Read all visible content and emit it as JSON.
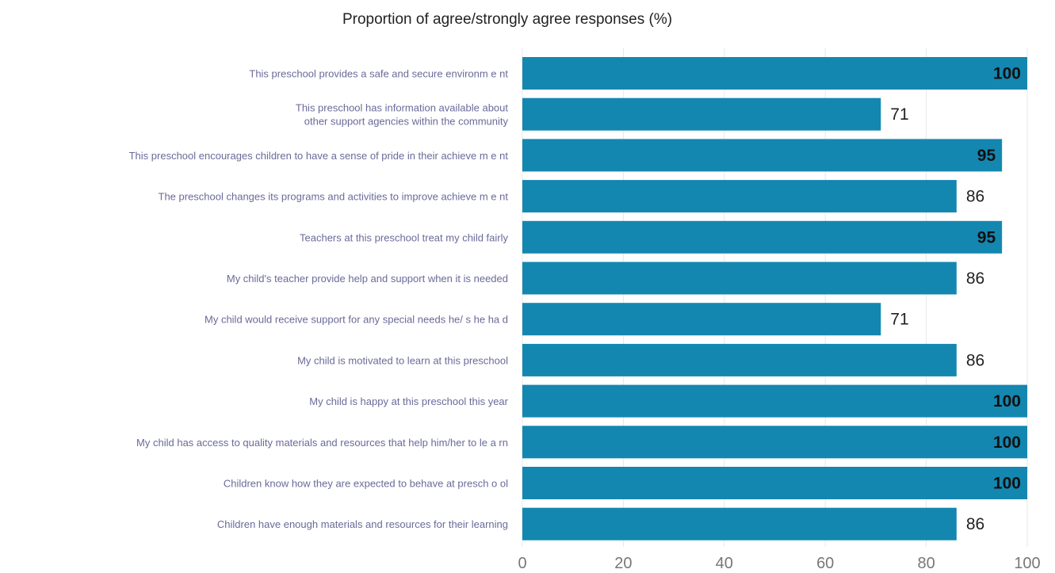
{
  "chart_data": {
    "type": "bar",
    "orientation": "horizontal",
    "title": "Proportion of agree/strongly agree responses (%)",
    "xlabel": "",
    "ylabel": "",
    "xlim": [
      0,
      100
    ],
    "xticks": [
      0,
      20,
      40,
      60,
      80,
      100
    ],
    "grid": true,
    "legend": "none",
    "bar_color": "#1487b0",
    "categories": [
      [
        "This preschool provides a safe and secure environm e nt"
      ],
      [
        "This preschool has information available about",
        "other support agencies within the community"
      ],
      [
        "This preschool encourages children to have a sense of pride in their achieve m e nt"
      ],
      [
        "The preschool changes its programs and activities to improve achieve m e nt"
      ],
      [
        "Teachers at this preschool treat my child fairly"
      ],
      [
        "My child's teacher provide help and support when it is needed"
      ],
      [
        "My child would receive support for any special needs he/ s he ha d"
      ],
      [
        "My child is motivated to learn at this preschool"
      ],
      [
        "My child is happy at this preschool this year"
      ],
      [
        "My child has access to quality materials and resources that help him/her to le a rn"
      ],
      [
        "Children know how they are expected to behave at presch o ol"
      ],
      [
        "Children have enough materials and resources for their learning"
      ]
    ],
    "values": [
      100,
      71,
      95,
      86,
      95,
      86,
      71,
      86,
      100,
      100,
      100,
      86
    ]
  }
}
